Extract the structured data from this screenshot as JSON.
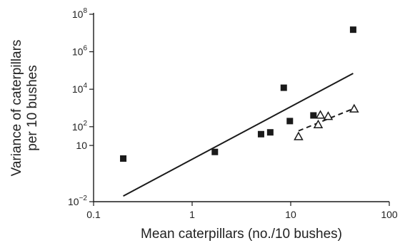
{
  "chart_data": {
    "type": "scatter",
    "xlabel": "Mean caterpillars (no./10 bushes)",
    "ylabel_lines": [
      "Variance of caterpillars",
      "per 10 bushes"
    ],
    "x_scale": "log",
    "y_scale": "log",
    "xlim": [
      0.1,
      100
    ],
    "ylim": [
      0.01,
      100000000
    ],
    "x_ticks": [
      {
        "value": 0.1,
        "label": "0.1"
      },
      {
        "value": 1,
        "label": "1"
      },
      {
        "value": 10,
        "label": "10"
      },
      {
        "value": 100,
        "label": "100"
      }
    ],
    "y_ticks": [
      {
        "value": 0.01,
        "base": "10",
        "exp": "−2"
      },
      {
        "value": 10,
        "base": "10",
        "exp": ""
      },
      {
        "value": 100,
        "base": "10",
        "exp": "2"
      },
      {
        "value": 10000,
        "base": "10",
        "exp": "4"
      },
      {
        "value": 1000000,
        "base": "10",
        "exp": "6"
      },
      {
        "value": 100000000,
        "base": "10",
        "exp": "8"
      }
    ],
    "grid": false,
    "legend": "none",
    "series": [
      {
        "marker": "filled-square",
        "color": "#1a1a1a",
        "points": [
          {
            "x": 0.2,
            "y": 2
          },
          {
            "x": 1.7,
            "y": 4.5
          },
          {
            "x": 5.0,
            "y": 40
          },
          {
            "x": 6.2,
            "y": 50
          },
          {
            "x": 8.5,
            "y": 12000
          },
          {
            "x": 9.8,
            "y": 200
          },
          {
            "x": 17,
            "y": 400
          },
          {
            "x": 43,
            "y": 15000000
          }
        ],
        "fit": {
          "style": "solid",
          "x": [
            0.2,
            43
          ],
          "y": [
            0.02,
            70000
          ]
        }
      },
      {
        "marker": "open-triangle",
        "color": "#1a1a1a",
        "points": [
          {
            "x": 12,
            "y": 30
          },
          {
            "x": 19,
            "y": 130
          },
          {
            "x": 20,
            "y": 420
          },
          {
            "x": 24,
            "y": 360
          },
          {
            "x": 44,
            "y": 900
          }
        ],
        "fit": {
          "style": "dashed",
          "x": [
            12,
            44
          ],
          "y": [
            60,
            950
          ]
        }
      }
    ]
  }
}
